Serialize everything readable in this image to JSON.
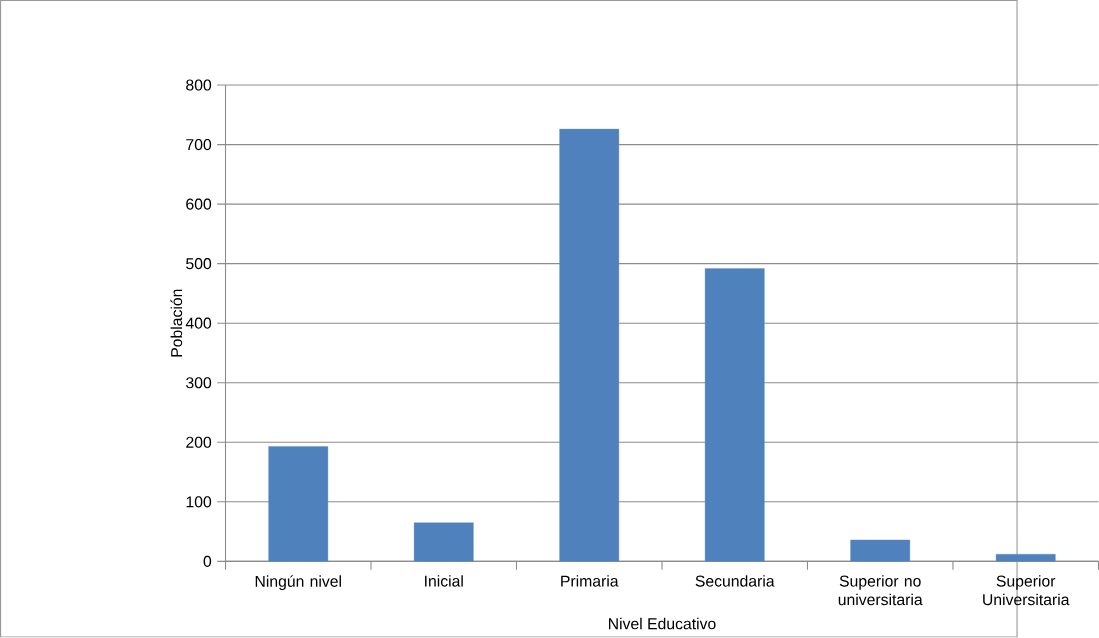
{
  "chart_data": {
    "type": "bar",
    "categories": [
      "Ningún nivel",
      "Inicial",
      "Primaria",
      "Secundaria",
      "Superior no universitaria",
      "Superior Universitaria"
    ],
    "values": [
      193,
      65,
      726,
      492,
      36,
      12
    ],
    "color": "#4f81bd",
    "xlabel": "Nivel Educativo",
    "ylabel": "Población",
    "ylim": [
      0,
      800
    ],
    "yticks": [
      0,
      100,
      200,
      300,
      400,
      500,
      600,
      700,
      800
    ],
    "grid": "y"
  }
}
